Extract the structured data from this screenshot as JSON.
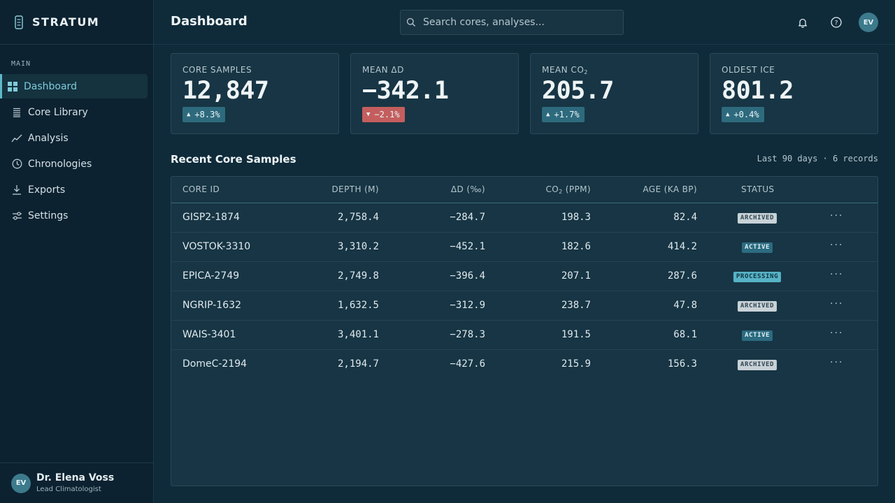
{
  "brand": {
    "name": "STRATUM"
  },
  "sidebar": {
    "section": "MAIN",
    "items": [
      {
        "label": "Dashboard"
      },
      {
        "label": "Core Library"
      },
      {
        "label": "Analysis"
      },
      {
        "label": "Chronologies"
      },
      {
        "label": "Exports"
      },
      {
        "label": "Settings"
      }
    ],
    "active_index": 0
  },
  "user": {
    "initials": "EV",
    "name": "Dr. Elena Voss",
    "role": "Lead Climatologist"
  },
  "header": {
    "title": "Dashboard",
    "search_placeholder": "Search cores, analyses...",
    "avatar_initials": "EV"
  },
  "cards": [
    {
      "label": "CORE SAMPLES",
      "value": "12,847",
      "change": "+8.3%",
      "direction": "up"
    },
    {
      "label": "MEAN ΔD",
      "value": "−342.1",
      "change": "−2.1%",
      "direction": "down"
    },
    {
      "label_main": "MEAN CO",
      "label_sub": "2",
      "value": "205.7",
      "change": "+1.7%",
      "direction": "up"
    },
    {
      "label": "OLDEST ICE",
      "value": "801.2",
      "change": "+0.4%",
      "direction": "up"
    }
  ],
  "table": {
    "title": "Recent Core Samples",
    "meta": "Last 90 days · 6 records",
    "columns": {
      "core_id": "CORE ID",
      "depth": "DEPTH (M)",
      "delta_d": "ΔD (‰)",
      "co2_main": "CO",
      "co2_sub": "2",
      "co2_unit": " (PPM)",
      "age": "AGE (KA BP)",
      "status": "STATUS"
    },
    "rows": [
      {
        "id": "GISP2-1874",
        "depth": "2,758.4",
        "delta": "−284.7",
        "co2": "198.3",
        "age": "82.4",
        "status": "ARCHIVED"
      },
      {
        "id": "VOSTOK-3310",
        "depth": "3,310.2",
        "delta": "−452.1",
        "co2": "182.6",
        "age": "414.2",
        "status": "ACTIVE"
      },
      {
        "id": "EPICA-2749",
        "depth": "2,749.8",
        "delta": "−396.4",
        "co2": "207.1",
        "age": "287.6",
        "status": "PROCESSING"
      },
      {
        "id": "NGRIP-1632",
        "depth": "1,632.5",
        "delta": "−312.9",
        "co2": "238.7",
        "age": "47.8",
        "status": "ARCHIVED"
      },
      {
        "id": "WAIS-3401",
        "depth": "3,401.1",
        "delta": "−278.3",
        "co2": "191.5",
        "age": "68.1",
        "status": "ACTIVE"
      },
      {
        "id": "DomeC-2194",
        "depth": "2,194.7",
        "delta": "−427.6",
        "co2": "215.9",
        "age": "156.3",
        "status": "ARCHIVED"
      }
    ],
    "row_menu": "···"
  },
  "colors": {
    "accent": "#5fb7c8",
    "up_badge": "#2e6a7d",
    "down_badge": "#c45e5e"
  }
}
